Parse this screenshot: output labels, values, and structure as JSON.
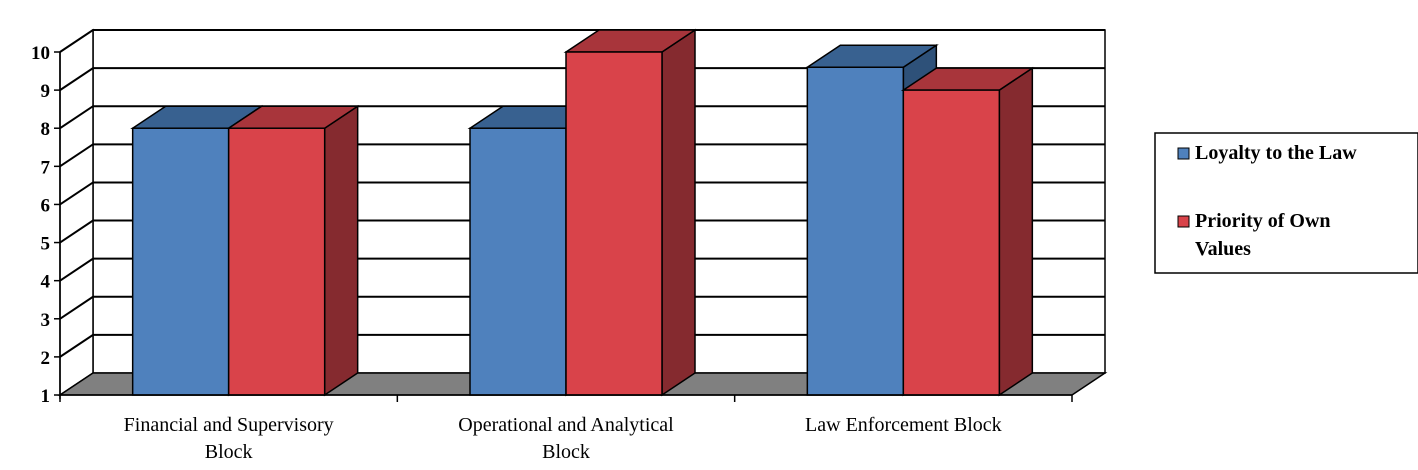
{
  "chart_data": {
    "type": "bar",
    "title": "",
    "xlabel": "",
    "ylabel": "",
    "categories": [
      [
        "Financial and Supervisory",
        "Block"
      ],
      [
        "Operational and Analytical",
        "Block"
      ],
      [
        "Law Enforcement Block"
      ]
    ],
    "series": [
      {
        "name": "Loyalty to the Law",
        "legend_lines": [
          "Loyalty to the Law"
        ],
        "color": "#4F81BD",
        "top_color": "#386190",
        "side_color": "#2E5179",
        "values": [
          8,
          8,
          9.6
        ]
      },
      {
        "name": "Priority of Own Values",
        "legend_lines": [
          "Priority of Own",
          "Values"
        ],
        "color": "#D9434A",
        "top_color": "#A8353B",
        "side_color": "#852A2F",
        "values": [
          8,
          10,
          9
        ]
      }
    ],
    "ylim": [
      1,
      10
    ],
    "yticks": [
      "1",
      "2",
      "3",
      "4",
      "5",
      "6",
      "7",
      "8",
      "9",
      "10"
    ],
    "grid": true,
    "three_d": true,
    "floor_color": "#808080",
    "legend_position": "right"
  }
}
